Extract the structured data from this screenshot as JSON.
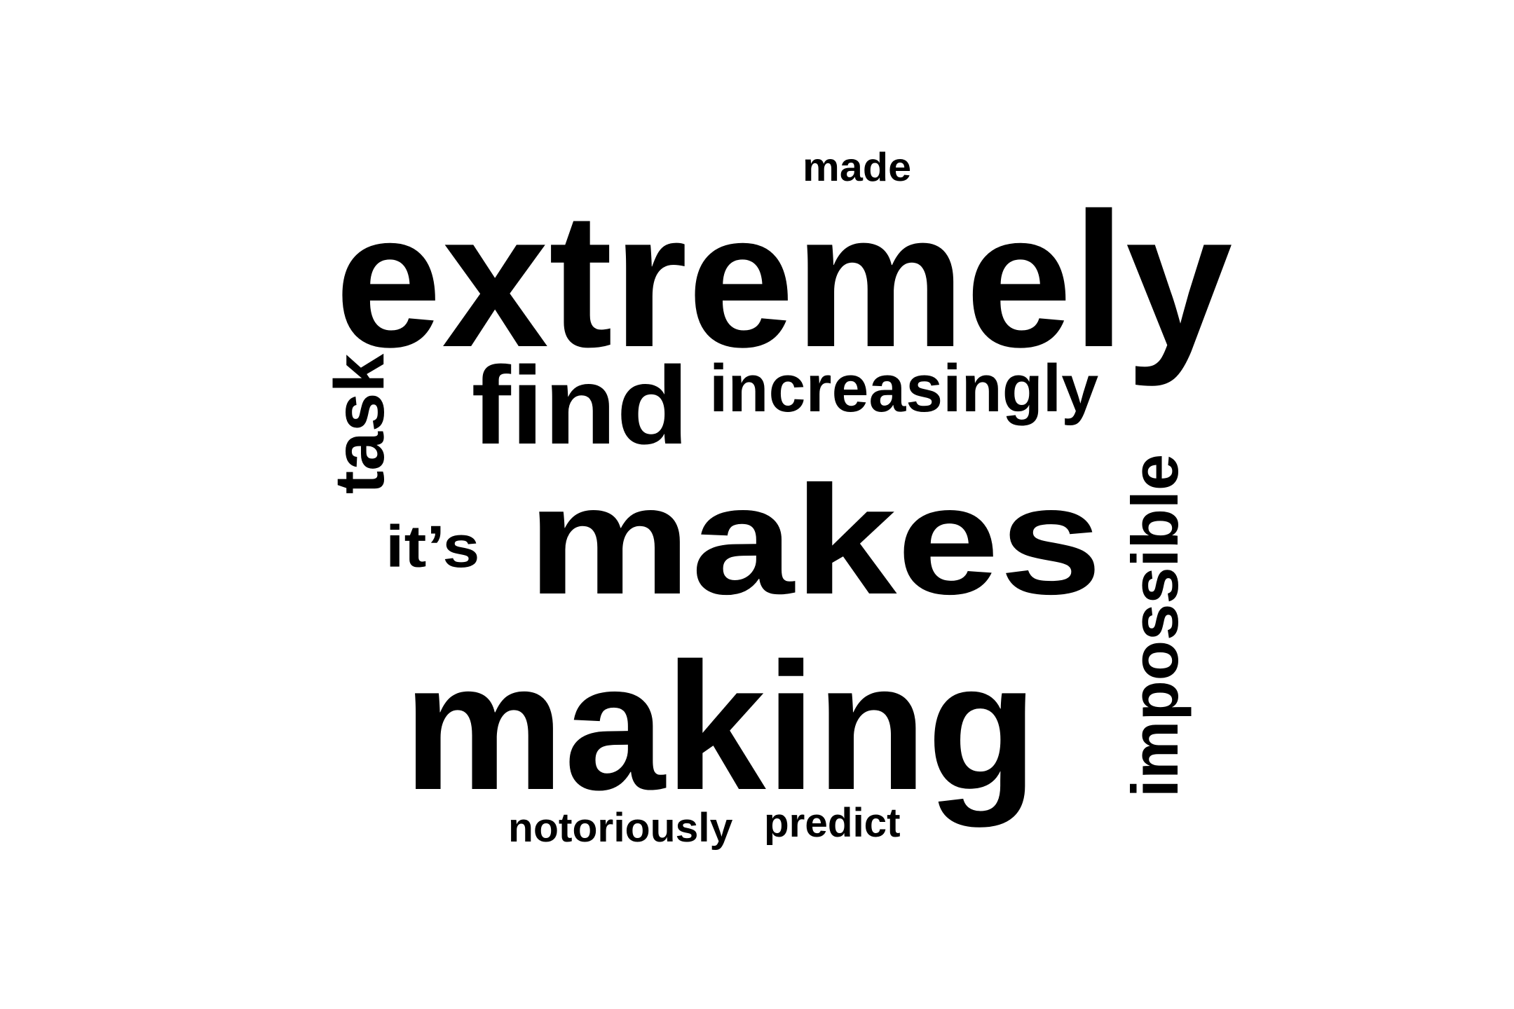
{
  "cloud": {
    "words": [
      {
        "key": "made",
        "text": "made",
        "color": "#000000"
      },
      {
        "key": "extremely",
        "text": "extremely",
        "color": "#000000"
      },
      {
        "key": "task",
        "text": "task",
        "color": "#000000",
        "rotated": true
      },
      {
        "key": "find",
        "text": "find",
        "color": "#000000"
      },
      {
        "key": "increasingly",
        "text": "increasingly",
        "color": "#000000"
      },
      {
        "key": "its",
        "text": "it’s",
        "color": "#000000"
      },
      {
        "key": "makes",
        "text": "makes",
        "color": "#000000"
      },
      {
        "key": "impossible",
        "text": "impossible",
        "color": "#000000",
        "rotated": true
      },
      {
        "key": "making",
        "text": "making",
        "color": "#000000"
      },
      {
        "key": "notoriously",
        "text": "notoriously",
        "color": "#000000"
      },
      {
        "key": "predict",
        "text": "predict",
        "color": "#000000"
      }
    ]
  }
}
